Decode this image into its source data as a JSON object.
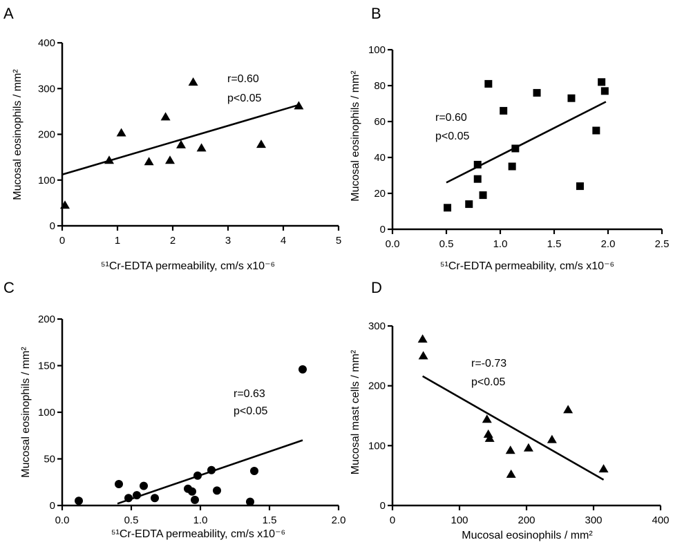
{
  "chart_data": [
    {
      "id": "A",
      "type": "scatter",
      "panel_label": "A",
      "marker": "triangle",
      "xlabel": "⁵¹Cr-EDTA permeability, cm/s x10⁻⁶",
      "ylabel": "Mucosal eosinophils / mm²",
      "xlim": [
        0,
        5
      ],
      "ylim": [
        0,
        400
      ],
      "xticks": [
        0,
        1,
        2,
        3,
        4,
        5
      ],
      "xtick_labels": [
        "0",
        "1",
        "2",
        "3",
        "4",
        "5"
      ],
      "yticks": [
        0,
        100,
        200,
        300,
        400
      ],
      "ytick_labels": [
        "0",
        "100",
        "200",
        "300",
        "400"
      ],
      "stats": [
        "r=0.60",
        "p<0.05"
      ],
      "points": [
        [
          0.05,
          45
        ],
        [
          0.85,
          143
        ],
        [
          1.07,
          203
        ],
        [
          1.57,
          140
        ],
        [
          1.87,
          238
        ],
        [
          1.95,
          143
        ],
        [
          2.15,
          177
        ],
        [
          2.37,
          314
        ],
        [
          2.52,
          170
        ],
        [
          3.6,
          178
        ],
        [
          4.28,
          262
        ]
      ],
      "fit": [
        [
          0,
          112
        ],
        [
          4.3,
          265
        ]
      ]
    },
    {
      "id": "B",
      "type": "scatter",
      "panel_label": "B",
      "marker": "square",
      "xlabel": "⁵¹Cr-EDTA permeability, cm/s x10⁻⁶",
      "ylabel": "Mucosal eosinophils / mm²",
      "xlim": [
        0,
        2.5
      ],
      "ylim": [
        0,
        100
      ],
      "xticks": [
        0,
        0.5,
        1.0,
        1.5,
        2.0,
        2.5
      ],
      "xtick_labels": [
        "0.0",
        "0.5",
        "1.0",
        "1.5",
        "2.0",
        "2.5"
      ],
      "yticks": [
        0,
        20,
        40,
        60,
        80,
        100
      ],
      "ytick_labels": [
        "0",
        "20",
        "40",
        "60",
        "80",
        "100"
      ],
      "stats": [
        "r=0.60",
        "p<0.05"
      ],
      "points": [
        [
          0.51,
          12
        ],
        [
          0.71,
          14
        ],
        [
          0.79,
          36
        ],
        [
          0.79,
          28
        ],
        [
          0.84,
          19
        ],
        [
          0.89,
          81
        ],
        [
          1.03,
          66
        ],
        [
          1.11,
          35
        ],
        [
          1.14,
          45
        ],
        [
          1.34,
          76
        ],
        [
          1.66,
          73
        ],
        [
          1.74,
          24
        ],
        [
          1.89,
          55
        ],
        [
          1.94,
          82
        ],
        [
          1.97,
          77
        ]
      ],
      "fit": [
        [
          0.5,
          26
        ],
        [
          1.98,
          71
        ]
      ]
    },
    {
      "id": "C",
      "type": "scatter",
      "panel_label": "C",
      "marker": "circle",
      "xlabel": "⁵¹Cr-EDTA permeability, cm/s x10⁻⁶",
      "ylabel": "Mucosal eosinophils / mm²",
      "xlim": [
        0,
        2.0
      ],
      "ylim": [
        0,
        200
      ],
      "xticks": [
        0,
        0.5,
        1.0,
        1.5,
        2.0
      ],
      "xtick_labels": [
        "0.0",
        "0.5",
        "1.0",
        "1.5",
        "2.0"
      ],
      "yticks": [
        0,
        50,
        100,
        150,
        200
      ],
      "ytick_labels": [
        "0",
        "50",
        "100",
        "150",
        "200"
      ],
      "stats": [
        "r=0.63",
        "p<0.05"
      ],
      "points": [
        [
          0.12,
          5
        ],
        [
          0.41,
          23
        ],
        [
          0.48,
          8
        ],
        [
          0.54,
          11
        ],
        [
          0.59,
          21
        ],
        [
          0.67,
          8
        ],
        [
          0.91,
          18
        ],
        [
          0.94,
          15
        ],
        [
          0.96,
          6
        ],
        [
          0.98,
          32
        ],
        [
          1.08,
          38
        ],
        [
          1.12,
          16
        ],
        [
          1.36,
          4
        ],
        [
          1.39,
          37
        ],
        [
          1.74,
          146
        ]
      ],
      "fit": [
        [
          0.4,
          2
        ],
        [
          1.74,
          70
        ]
      ]
    },
    {
      "id": "D",
      "type": "scatter",
      "panel_label": "D",
      "marker": "triangle",
      "xlabel": "Mucosal eosinophils / mm²",
      "ylabel": "Mucosal mast cells / mm²",
      "xlim": [
        0,
        400
      ],
      "ylim": [
        0,
        300
      ],
      "xticks": [
        0,
        100,
        200,
        300,
        400
      ],
      "xtick_labels": [
        "0",
        "100",
        "200",
        "300",
        "400"
      ],
      "yticks": [
        0,
        100,
        200,
        300
      ],
      "ytick_labels": [
        "0",
        "100",
        "200",
        "300"
      ],
      "stats": [
        "r=-0.73",
        "p<0.05"
      ],
      "points": [
        [
          45,
          278
        ],
        [
          46,
          250
        ],
        [
          141,
          144
        ],
        [
          143,
          119
        ],
        [
          145,
          112
        ],
        [
          176,
          92
        ],
        [
          177,
          52
        ],
        [
          203,
          96
        ],
        [
          238,
          110
        ],
        [
          262,
          160
        ],
        [
          315,
          61
        ]
      ],
      "fit": [
        [
          45,
          216
        ],
        [
          315,
          43
        ]
      ]
    }
  ]
}
